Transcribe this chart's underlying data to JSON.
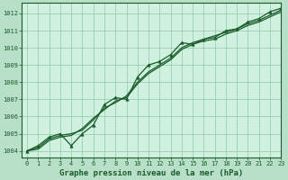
{
  "title": "Graphe pression niveau de la mer (hPa)",
  "bg_color": "#b8dfc8",
  "plot_bg_color": "#d0f0e0",
  "grid_color": "#90c8a8",
  "line_color": "#1a5c2a",
  "marker_color": "#1a5c2a",
  "xlim": [
    -0.5,
    23
  ],
  "ylim": [
    1003.6,
    1012.6
  ],
  "yticks": [
    1004,
    1005,
    1006,
    1007,
    1008,
    1009,
    1010,
    1011,
    1012
  ],
  "xticks": [
    0,
    1,
    2,
    3,
    4,
    5,
    6,
    7,
    8,
    9,
    10,
    11,
    12,
    13,
    14,
    15,
    16,
    17,
    18,
    19,
    20,
    21,
    22,
    23
  ],
  "series": [
    [
      1004.0,
      1004.3,
      1004.8,
      1005.0,
      1004.3,
      1005.0,
      1005.5,
      1006.7,
      1007.1,
      1007.0,
      1008.3,
      1009.0,
      1009.2,
      1009.6,
      1010.3,
      1010.2,
      1010.5,
      1010.6,
      1011.0,
      1011.1,
      1011.5,
      1011.7,
      1012.1,
      1012.3
    ],
    [
      1004.0,
      1004.2,
      1004.7,
      1004.9,
      1005.0,
      1005.2,
      1005.8,
      1006.5,
      1006.8,
      1007.2,
      1008.0,
      1008.6,
      1009.0,
      1009.4,
      1010.0,
      1010.3,
      1010.5,
      1010.7,
      1010.9,
      1011.1,
      1011.4,
      1011.6,
      1011.9,
      1012.2
    ],
    [
      1004.0,
      1004.1,
      1004.6,
      1004.8,
      1004.9,
      1005.3,
      1005.9,
      1006.4,
      1006.9,
      1007.1,
      1007.9,
      1008.5,
      1008.9,
      1009.3,
      1009.9,
      1010.2,
      1010.4,
      1010.5,
      1010.8,
      1011.0,
      1011.3,
      1011.5,
      1011.8,
      1012.1
    ]
  ],
  "figsize": [
    3.2,
    2.0
  ],
  "dpi": 100,
  "ylabel_fontsize": 5.5,
  "xlabel_fontsize": 6.5,
  "tick_fontsize": 5.0,
  "linewidth": 0.9,
  "markersize": 2.5
}
